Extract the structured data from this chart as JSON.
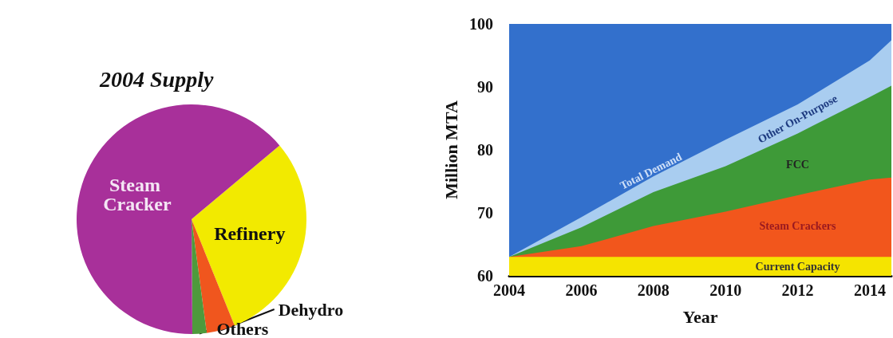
{
  "chart_data": [
    {
      "type": "pie",
      "title": "2004 Supply",
      "categories": [
        "Refinery",
        "Dehydro",
        "Others",
        "Steam Cracker"
      ],
      "values": [
        30,
        4,
        2,
        64
      ],
      "colors": [
        "#f2ea00",
        "#f0561e",
        "#4e9a3c",
        "#a8309a"
      ]
    },
    {
      "type": "area",
      "xlabel": "Year",
      "ylabel": "Million MTA",
      "x": [
        2004,
        2006,
        2008,
        2010,
        2012,
        2014,
        2014.6
      ],
      "xlim": [
        2004,
        2014.6
      ],
      "xticks": [
        2004,
        2006,
        2008,
        2010,
        2012,
        2014
      ],
      "ylim": [
        60,
        100
      ],
      "yticks": [
        60,
        70,
        80,
        90,
        100
      ],
      "series": [
        {
          "name": "Current Capacity",
          "color": "#f5e400",
          "values": [
            63,
            63,
            63,
            63,
            63,
            63,
            63
          ]
        },
        {
          "name": "Steam Crackers",
          "color": "#f2561c",
          "values": [
            63,
            64.7,
            67.9,
            70.2,
            72.8,
            75.3,
            75.6
          ]
        },
        {
          "name": "FCC",
          "color": "#3e9a38",
          "values": [
            63,
            67.7,
            73.3,
            77.4,
            82.6,
            88.4,
            90.2
          ]
        },
        {
          "name": "Other On-Purpose",
          "color": "#a9cdf0",
          "values": [
            63,
            69.3,
            75.8,
            81.6,
            87.2,
            94.2,
            97.4
          ]
        }
      ],
      "annotations": [
        {
          "text": "Total Demand",
          "x": 2008,
          "y": 75.8
        }
      ]
    }
  ]
}
